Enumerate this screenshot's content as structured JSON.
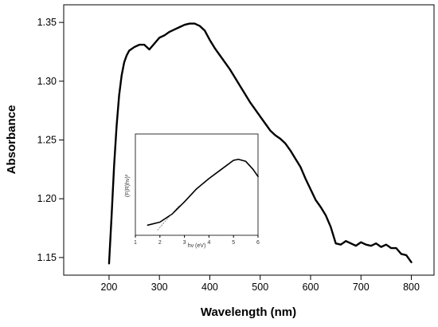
{
  "chart_data": [
    {
      "type": "line",
      "title": "",
      "xlabel": "Wavelength (nm)",
      "ylabel": "Absorbance",
      "xlim": [
        110,
        845
      ],
      "ylim": [
        1.135,
        1.365
      ],
      "x_ticks": [
        200,
        300,
        400,
        500,
        600,
        700,
        800
      ],
      "y_ticks": [
        1.15,
        1.2,
        1.25,
        1.3,
        1.35
      ],
      "y_tick_labels": [
        "1.15",
        "1.20",
        "1.25",
        "1.30",
        "1.35"
      ],
      "grid": false,
      "legend": "none",
      "line_color": "#000000",
      "series": [
        {
          "x": [
            200,
            205,
            210,
            215,
            220,
            225,
            230,
            235,
            240,
            250,
            260,
            270,
            280,
            290,
            300,
            310,
            320,
            330,
            340,
            350,
            360,
            370,
            380,
            390,
            400,
            410,
            420,
            430,
            440,
            450,
            460,
            470,
            480,
            490,
            500,
            510,
            520,
            530,
            540,
            550,
            560,
            570,
            580,
            590,
            600,
            610,
            620,
            630,
            640,
            650,
            660,
            670,
            680,
            690,
            700,
            710,
            720,
            730,
            740,
            750,
            760,
            770,
            780,
            790,
            800
          ],
          "y": [
            1.145,
            1.185,
            1.228,
            1.262,
            1.288,
            1.305,
            1.316,
            1.322,
            1.326,
            1.329,
            1.331,
            1.331,
            1.327,
            1.332,
            1.337,
            1.339,
            1.342,
            1.344,
            1.346,
            1.348,
            1.349,
            1.349,
            1.347,
            1.343,
            1.335,
            1.328,
            1.322,
            1.316,
            1.31,
            1.303,
            1.296,
            1.289,
            1.282,
            1.276,
            1.27,
            1.264,
            1.258,
            1.254,
            1.251,
            1.247,
            1.241,
            1.234,
            1.227,
            1.217,
            1.208,
            1.199,
            1.193,
            1.186,
            1.176,
            1.162,
            1.161,
            1.164,
            1.162,
            1.16,
            1.163,
            1.161,
            1.16,
            1.162,
            1.159,
            1.161,
            1.158,
            1.158,
            1.153,
            1.152,
            1.146
          ]
        }
      ]
    },
    {
      "type": "line",
      "title": "",
      "xlabel": "hν (eV)",
      "ylabel": "(F(R)hν)²",
      "xlim": [
        1,
        6
      ],
      "ylim": [
        0,
        10
      ],
      "x_ticks": [
        1,
        2,
        3,
        4,
        5,
        6
      ],
      "y_ticks": [],
      "grid": false,
      "legend": "none",
      "line_color": "#000000",
      "series": [
        {
          "x": [
            1.5,
            2.0,
            2.5,
            3.0,
            3.5,
            4.0,
            4.5,
            5.0,
            5.2,
            5.5,
            5.8,
            6.0
          ],
          "y": [
            1.0,
            1.3,
            2.1,
            3.3,
            4.6,
            5.6,
            6.5,
            7.4,
            7.5,
            7.3,
            6.5,
            5.8
          ]
        },
        {
          "x": [
            1.9,
            2.8
          ],
          "y": [
            0.5,
            3.0
          ]
        }
      ]
    }
  ]
}
